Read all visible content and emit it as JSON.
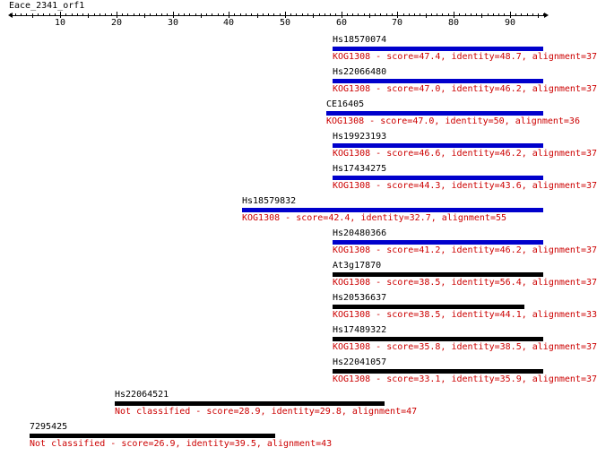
{
  "query": {
    "name": "Eace_2341_orf1"
  },
  "axis": {
    "ticks": [
      "10",
      "20",
      "30",
      "40",
      "50",
      "60",
      "70",
      "80",
      "90"
    ]
  },
  "colors": {
    "kog": "#0000cc",
    "unclassified": "#000000",
    "label": "#cc0000"
  },
  "hits": [
    {
      "id": "Hs18570074",
      "start": 58.5,
      "end": 96,
      "color": "#0000cc",
      "desc": "KOG1308 - score=47.4, identity=48.7, alignment=37"
    },
    {
      "id": "Hs22066480",
      "start": 58.5,
      "end": 96,
      "color": "#0000cc",
      "desc": "KOG1308 - score=47.0, identity=46.2, alignment=37"
    },
    {
      "id": "CE16405",
      "start": 57.4,
      "end": 96,
      "color": "#0000cc",
      "desc": "KOG1308 - score=47.0, identity=50, alignment=36"
    },
    {
      "id": "Hs19923193",
      "start": 58.5,
      "end": 96,
      "color": "#0000cc",
      "desc": "KOG1308 - score=46.6, identity=46.2, alignment=37"
    },
    {
      "id": "Hs17434275",
      "start": 58.5,
      "end": 96,
      "color": "#0000cc",
      "desc": "KOG1308 - score=44.3, identity=43.6, alignment=37"
    },
    {
      "id": "Hs18579832",
      "start": 42.3,
      "end": 96,
      "color": "#0000cc",
      "desc": "KOG1308 - score=42.4, identity=32.7, alignment=55"
    },
    {
      "id": "Hs20480366",
      "start": 58.5,
      "end": 96,
      "color": "#0000cc",
      "desc": "KOG1308 - score=41.2, identity=46.2, alignment=37"
    },
    {
      "id": "At3g17870",
      "start": 58.5,
      "end": 96,
      "color": "#000000",
      "desc": "KOG1308 - score=38.5, identity=56.4, alignment=37"
    },
    {
      "id": "Hs20536637",
      "start": 58.5,
      "end": 92.6,
      "color": "#000000",
      "desc": "KOG1308 - score=38.5, identity=44.1, alignment=33"
    },
    {
      "id": "Hs17489322",
      "start": 58.5,
      "end": 96,
      "color": "#000000",
      "desc": "KOG1308 - score=35.8, identity=38.5, alignment=37"
    },
    {
      "id": "Hs22041057",
      "start": 58.5,
      "end": 96,
      "color": "#000000",
      "desc": "KOG1308 - score=33.1, identity=35.9, alignment=37"
    },
    {
      "id": "Hs22064521",
      "start": 19.7,
      "end": 67.7,
      "color": "#000000",
      "desc": "Not classified - score=28.9, identity=29.8, alignment=47"
    },
    {
      "id": "7295425",
      "start": 4.5,
      "end": 48.2,
      "color": "#000000",
      "desc": "Not classified - score=26.9, identity=39.5, alignment=43"
    }
  ]
}
